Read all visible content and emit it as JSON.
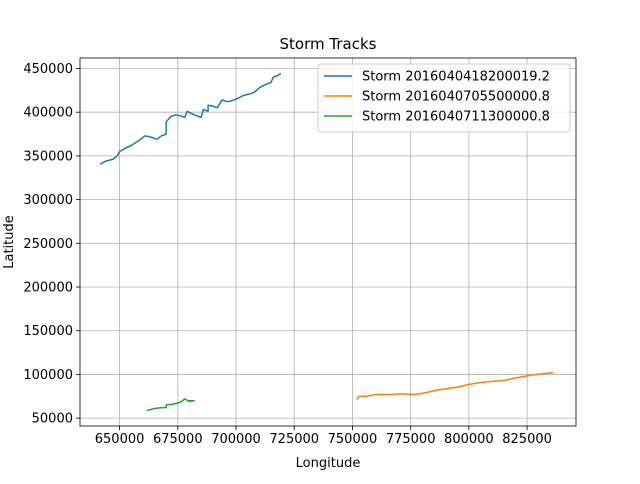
{
  "chart_data": {
    "type": "line",
    "title": "Storm Tracks",
    "xlabel": "Longitude",
    "ylabel": "Latitude",
    "xlim": [
      633000,
      846000
    ],
    "ylim": [
      41000,
      462000
    ],
    "grid": true,
    "legend_position": "top-right",
    "x_ticks": [
      {
        "value": 650000,
        "label": "650000"
      },
      {
        "value": 675000,
        "label": "675000"
      },
      {
        "value": 700000,
        "label": "700000"
      },
      {
        "value": 725000,
        "label": "725000"
      },
      {
        "value": 750000,
        "label": "750000"
      },
      {
        "value": 775000,
        "label": "775000"
      },
      {
        "value": 800000,
        "label": "800000"
      },
      {
        "value": 825000,
        "label": "825000"
      }
    ],
    "y_ticks": [
      {
        "value": 50000,
        "label": "50000"
      },
      {
        "value": 100000,
        "label": "100000"
      },
      {
        "value": 150000,
        "label": "150000"
      },
      {
        "value": 200000,
        "label": "200000"
      },
      {
        "value": 250000,
        "label": "250000"
      },
      {
        "value": 300000,
        "label": "300000"
      },
      {
        "value": 350000,
        "label": "350000"
      },
      {
        "value": 400000,
        "label": "400000"
      },
      {
        "value": 450000,
        "label": "450000"
      }
    ],
    "series": [
      {
        "name": "Storm 2016040418200019.2",
        "color": "#1f77b4",
        "points": [
          [
            642000,
            341000
          ],
          [
            644000,
            344000
          ],
          [
            647000,
            346000
          ],
          [
            649000,
            350000
          ],
          [
            650000,
            355000
          ],
          [
            652000,
            358000
          ],
          [
            655000,
            362000
          ],
          [
            658000,
            367000
          ],
          [
            661000,
            373000
          ],
          [
            664000,
            371000
          ],
          [
            666000,
            369000
          ],
          [
            668000,
            373000
          ],
          [
            670000,
            375000
          ],
          [
            670000,
            389000
          ],
          [
            672000,
            395000
          ],
          [
            674000,
            397000
          ],
          [
            676000,
            396000
          ],
          [
            678000,
            394000
          ],
          [
            679000,
            401000
          ],
          [
            682000,
            397000
          ],
          [
            685000,
            394000
          ],
          [
            686000,
            403000
          ],
          [
            688000,
            401000
          ],
          [
            688000,
            408000
          ],
          [
            690000,
            407000
          ],
          [
            692000,
            405000
          ],
          [
            694000,
            414000
          ],
          [
            696000,
            412000
          ],
          [
            698000,
            413000
          ],
          [
            701000,
            416000
          ],
          [
            703000,
            419000
          ],
          [
            706000,
            421000
          ],
          [
            708000,
            423000
          ],
          [
            710000,
            428000
          ],
          [
            713000,
            432000
          ],
          [
            715000,
            434000
          ],
          [
            716000,
            440000
          ],
          [
            718000,
            442000
          ],
          [
            719000,
            444000
          ]
        ]
      },
      {
        "name": "Storm 2016040705500000.8",
        "color": "#ff7f0e",
        "points": [
          [
            752000,
            72000
          ],
          [
            753000,
            75000
          ],
          [
            756000,
            75000
          ],
          [
            760000,
            77000
          ],
          [
            764000,
            77000
          ],
          [
            767000,
            77000
          ],
          [
            771000,
            78000
          ],
          [
            776000,
            77000
          ],
          [
            779000,
            78000
          ],
          [
            783000,
            80000
          ],
          [
            786000,
            82000
          ],
          [
            791000,
            84000
          ],
          [
            796000,
            86000
          ],
          [
            799000,
            88000
          ],
          [
            803000,
            90000
          ],
          [
            806000,
            91000
          ],
          [
            810000,
            92000
          ],
          [
            815000,
            93000
          ],
          [
            820000,
            96000
          ],
          [
            824000,
            98000
          ],
          [
            829000,
            100000
          ],
          [
            832000,
            101000
          ],
          [
            836000,
            102000
          ]
        ]
      },
      {
        "name": "Storm 2016040711300000.8",
        "color": "#2ca02c",
        "points": [
          [
            662000,
            59000
          ],
          [
            665000,
            61000
          ],
          [
            668000,
            62000
          ],
          [
            670000,
            62000
          ],
          [
            670000,
            65000
          ],
          [
            673000,
            66000
          ],
          [
            676000,
            68000
          ],
          [
            678000,
            72000
          ],
          [
            680000,
            69000
          ],
          [
            682000,
            70000
          ],
          [
            680000,
            70000
          ]
        ]
      }
    ]
  }
}
